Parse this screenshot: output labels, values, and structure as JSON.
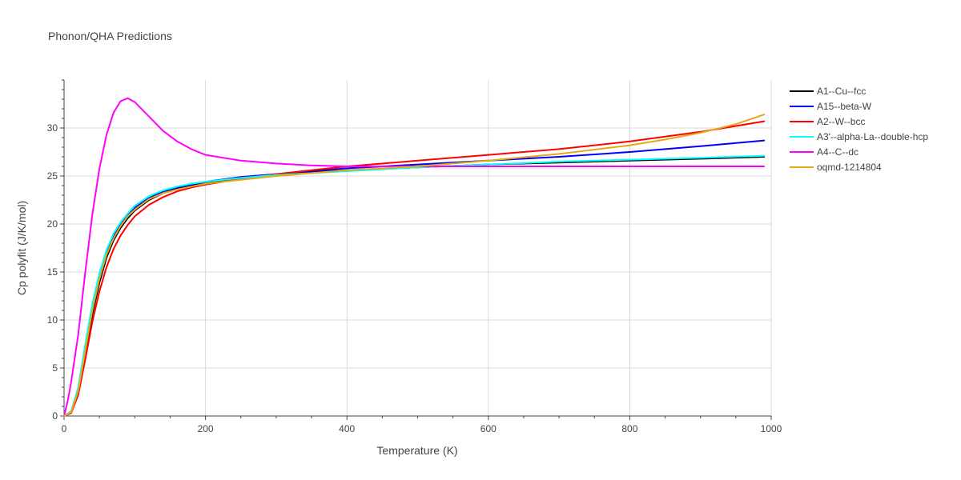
{
  "chart_data": {
    "type": "line",
    "title": "Phonon/QHA Predictions",
    "xlabel": "Temperature (K)",
    "ylabel": "Cp polyfit (J/K/mol)",
    "xlim": [
      0,
      1000
    ],
    "ylim": [
      0,
      35
    ],
    "xticks": [
      0,
      200,
      400,
      600,
      800,
      1000
    ],
    "yticks": [
      0,
      5,
      10,
      15,
      20,
      25,
      30
    ],
    "grid": true,
    "legend_position": "right",
    "series": [
      {
        "name": "A1--Cu--fcc",
        "color": "#000000",
        "x": [
          0,
          10,
          20,
          30,
          40,
          50,
          60,
          70,
          80,
          90,
          100,
          120,
          140,
          160,
          180,
          200,
          250,
          300,
          350,
          400,
          500,
          600,
          700,
          800,
          900,
          990
        ],
        "y": [
          0,
          0.4,
          2.5,
          6.5,
          10.6,
          13.9,
          16.5,
          18.3,
          19.6,
          20.6,
          21.4,
          22.5,
          23.2,
          23.7,
          24.0,
          24.3,
          24.8,
          25.1,
          25.4,
          25.6,
          25.9,
          26.2,
          26.4,
          26.6,
          26.8,
          27.0
        ]
      },
      {
        "name": "A15--beta-W",
        "color": "#0000ff",
        "x": [
          0,
          10,
          20,
          30,
          40,
          50,
          60,
          70,
          80,
          90,
          100,
          120,
          140,
          160,
          180,
          200,
          250,
          300,
          350,
          400,
          500,
          600,
          700,
          800,
          900,
          990
        ],
        "y": [
          0,
          0.4,
          2.7,
          7.0,
          11.2,
          14.4,
          16.9,
          18.7,
          19.9,
          20.9,
          21.7,
          22.7,
          23.4,
          23.8,
          24.1,
          24.4,
          24.9,
          25.2,
          25.5,
          25.8,
          26.2,
          26.6,
          27.0,
          27.5,
          28.1,
          28.7
        ]
      },
      {
        "name": "A2--W--bcc",
        "color": "#ff0000",
        "x": [
          0,
          10,
          20,
          30,
          40,
          50,
          60,
          70,
          80,
          90,
          100,
          120,
          140,
          160,
          180,
          200,
          250,
          300,
          350,
          400,
          500,
          600,
          700,
          800,
          900,
          990
        ],
        "y": [
          0,
          0.3,
          2.2,
          5.9,
          9.8,
          13.0,
          15.5,
          17.4,
          18.8,
          19.9,
          20.8,
          22.0,
          22.8,
          23.4,
          23.8,
          24.1,
          24.7,
          25.2,
          25.6,
          26.0,
          26.6,
          27.2,
          27.8,
          28.6,
          29.6,
          30.7
        ]
      },
      {
        "name": "A3'--alpha-La--double-hcp",
        "color": "#00ffff",
        "x": [
          0,
          10,
          20,
          30,
          40,
          50,
          60,
          70,
          80,
          90,
          100,
          120,
          140,
          160,
          180,
          200,
          250,
          300,
          350,
          400,
          500,
          600,
          700,
          800,
          900,
          990
        ],
        "y": [
          0,
          0.5,
          3.0,
          7.5,
          11.7,
          14.9,
          17.3,
          19.0,
          20.2,
          21.1,
          21.9,
          22.9,
          23.5,
          23.9,
          24.2,
          24.4,
          24.8,
          25.1,
          25.3,
          25.5,
          25.9,
          26.2,
          26.5,
          26.7,
          26.9,
          27.1
        ]
      },
      {
        "name": "A4--C--dc",
        "color": "#ff00ff",
        "x": [
          0,
          5,
          10,
          20,
          30,
          40,
          50,
          60,
          70,
          80,
          90,
          100,
          120,
          140,
          160,
          180,
          200,
          250,
          300,
          350,
          400,
          500,
          600,
          700,
          800,
          900,
          990
        ],
        "y": [
          0,
          1.5,
          3.5,
          8.5,
          15.0,
          21.0,
          25.8,
          29.3,
          31.6,
          32.8,
          33.1,
          32.7,
          31.2,
          29.7,
          28.6,
          27.8,
          27.2,
          26.6,
          26.3,
          26.1,
          26.0,
          26.0,
          26.0,
          26.0,
          26.0,
          26.0,
          26.0
        ]
      },
      {
        "name": "oqmd-1214804",
        "color": "#e6a817",
        "x": [
          0,
          10,
          20,
          30,
          40,
          50,
          60,
          70,
          80,
          90,
          100,
          120,
          140,
          160,
          180,
          200,
          250,
          300,
          350,
          400,
          500,
          600,
          700,
          800,
          850,
          900,
          950,
          990
        ],
        "y": [
          0,
          0.4,
          2.6,
          6.8,
          11.0,
          14.3,
          16.8,
          18.5,
          19.8,
          20.8,
          21.5,
          22.6,
          23.2,
          23.6,
          23.9,
          24.2,
          24.6,
          25.0,
          25.3,
          25.6,
          26.0,
          26.6,
          27.3,
          28.2,
          28.8,
          29.5,
          30.4,
          31.4
        ]
      }
    ]
  }
}
